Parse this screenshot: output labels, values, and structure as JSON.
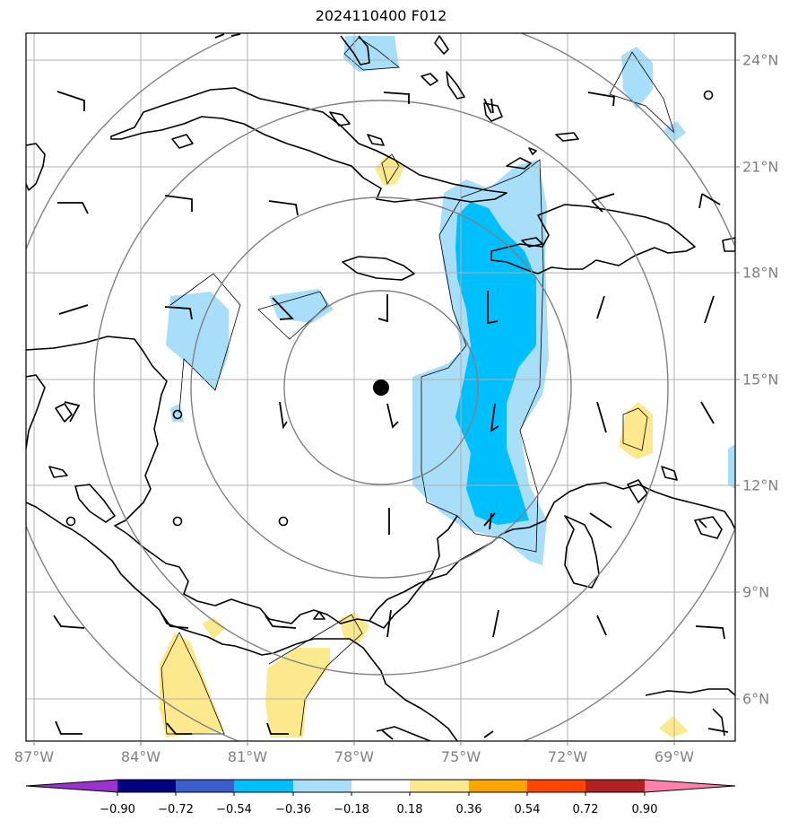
{
  "title": "2024110400 F012",
  "lon_labels": [
    "87°W",
    "84°W",
    "81°W",
    "78°W",
    "75°W",
    "72°W",
    "69°W"
  ],
  "lat_labels": [
    "24°N",
    "21°N",
    "18°N",
    "15°N",
    "12°N",
    "9°N",
    "6°N"
  ],
  "colorbar": {
    "ticks": [
      "−0.90",
      "−0.72",
      "−0.54",
      "−0.36",
      "−0.18",
      "0.18",
      "0.36",
      "0.54",
      "0.72",
      "0.90"
    ],
    "colors": [
      "#9933cc",
      "#000080",
      "#3a5fcd",
      "#00bfff",
      "#a9def9",
      "#ffffff",
      "#fde98d",
      "#ffa500",
      "#ff4500",
      "#b22222",
      "#ff82ab"
    ]
  }
}
